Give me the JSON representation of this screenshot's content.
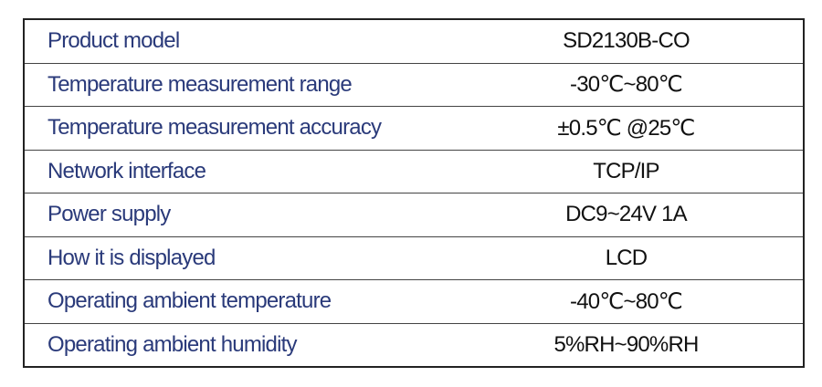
{
  "table": {
    "rows": [
      [
        "Product model",
        "SD2130B-CO"
      ],
      [
        "Temperature measurement range",
        "-30℃~80℃"
      ],
      [
        "Temperature measurement accuracy",
        "±0.5℃ @25℃"
      ],
      [
        "Network interface",
        "TCP/IP"
      ],
      [
        "Power supply",
        "DC9~24V 1A"
      ],
      [
        "How it is displayed",
        "LCD"
      ],
      [
        "Operating ambient temperature",
        "-40℃~80℃"
      ],
      [
        "Operating ambient humidity",
        "5%RH~90%RH"
      ]
    ]
  }
}
